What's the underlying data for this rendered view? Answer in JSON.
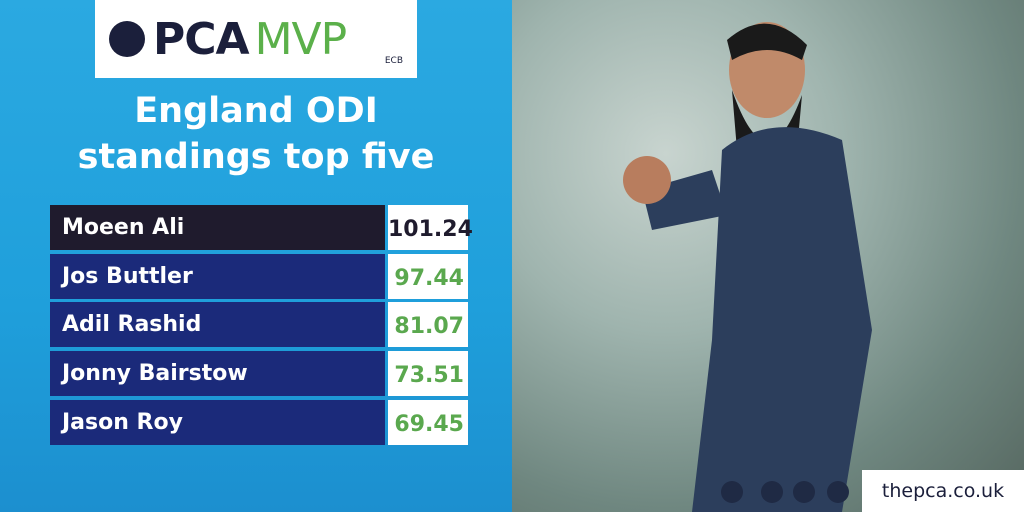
{
  "header": {
    "logo_left": "PCA",
    "logo_right": "MVP",
    "partner": "ECB"
  },
  "title": [
    "England ODI",
    "standings top five"
  ],
  "table": {
    "rows": [
      [
        "Moeen Ali",
        101.24
      ],
      [
        "Jos Buttler",
        97.44
      ],
      [
        "Adil Rashid",
        81.07
      ],
      [
        "Jonny Bairstow",
        73.51
      ],
      [
        "Jason Roy",
        69.45
      ]
    ]
  },
  "footer": {
    "website": "thepca.co.uk"
  }
}
